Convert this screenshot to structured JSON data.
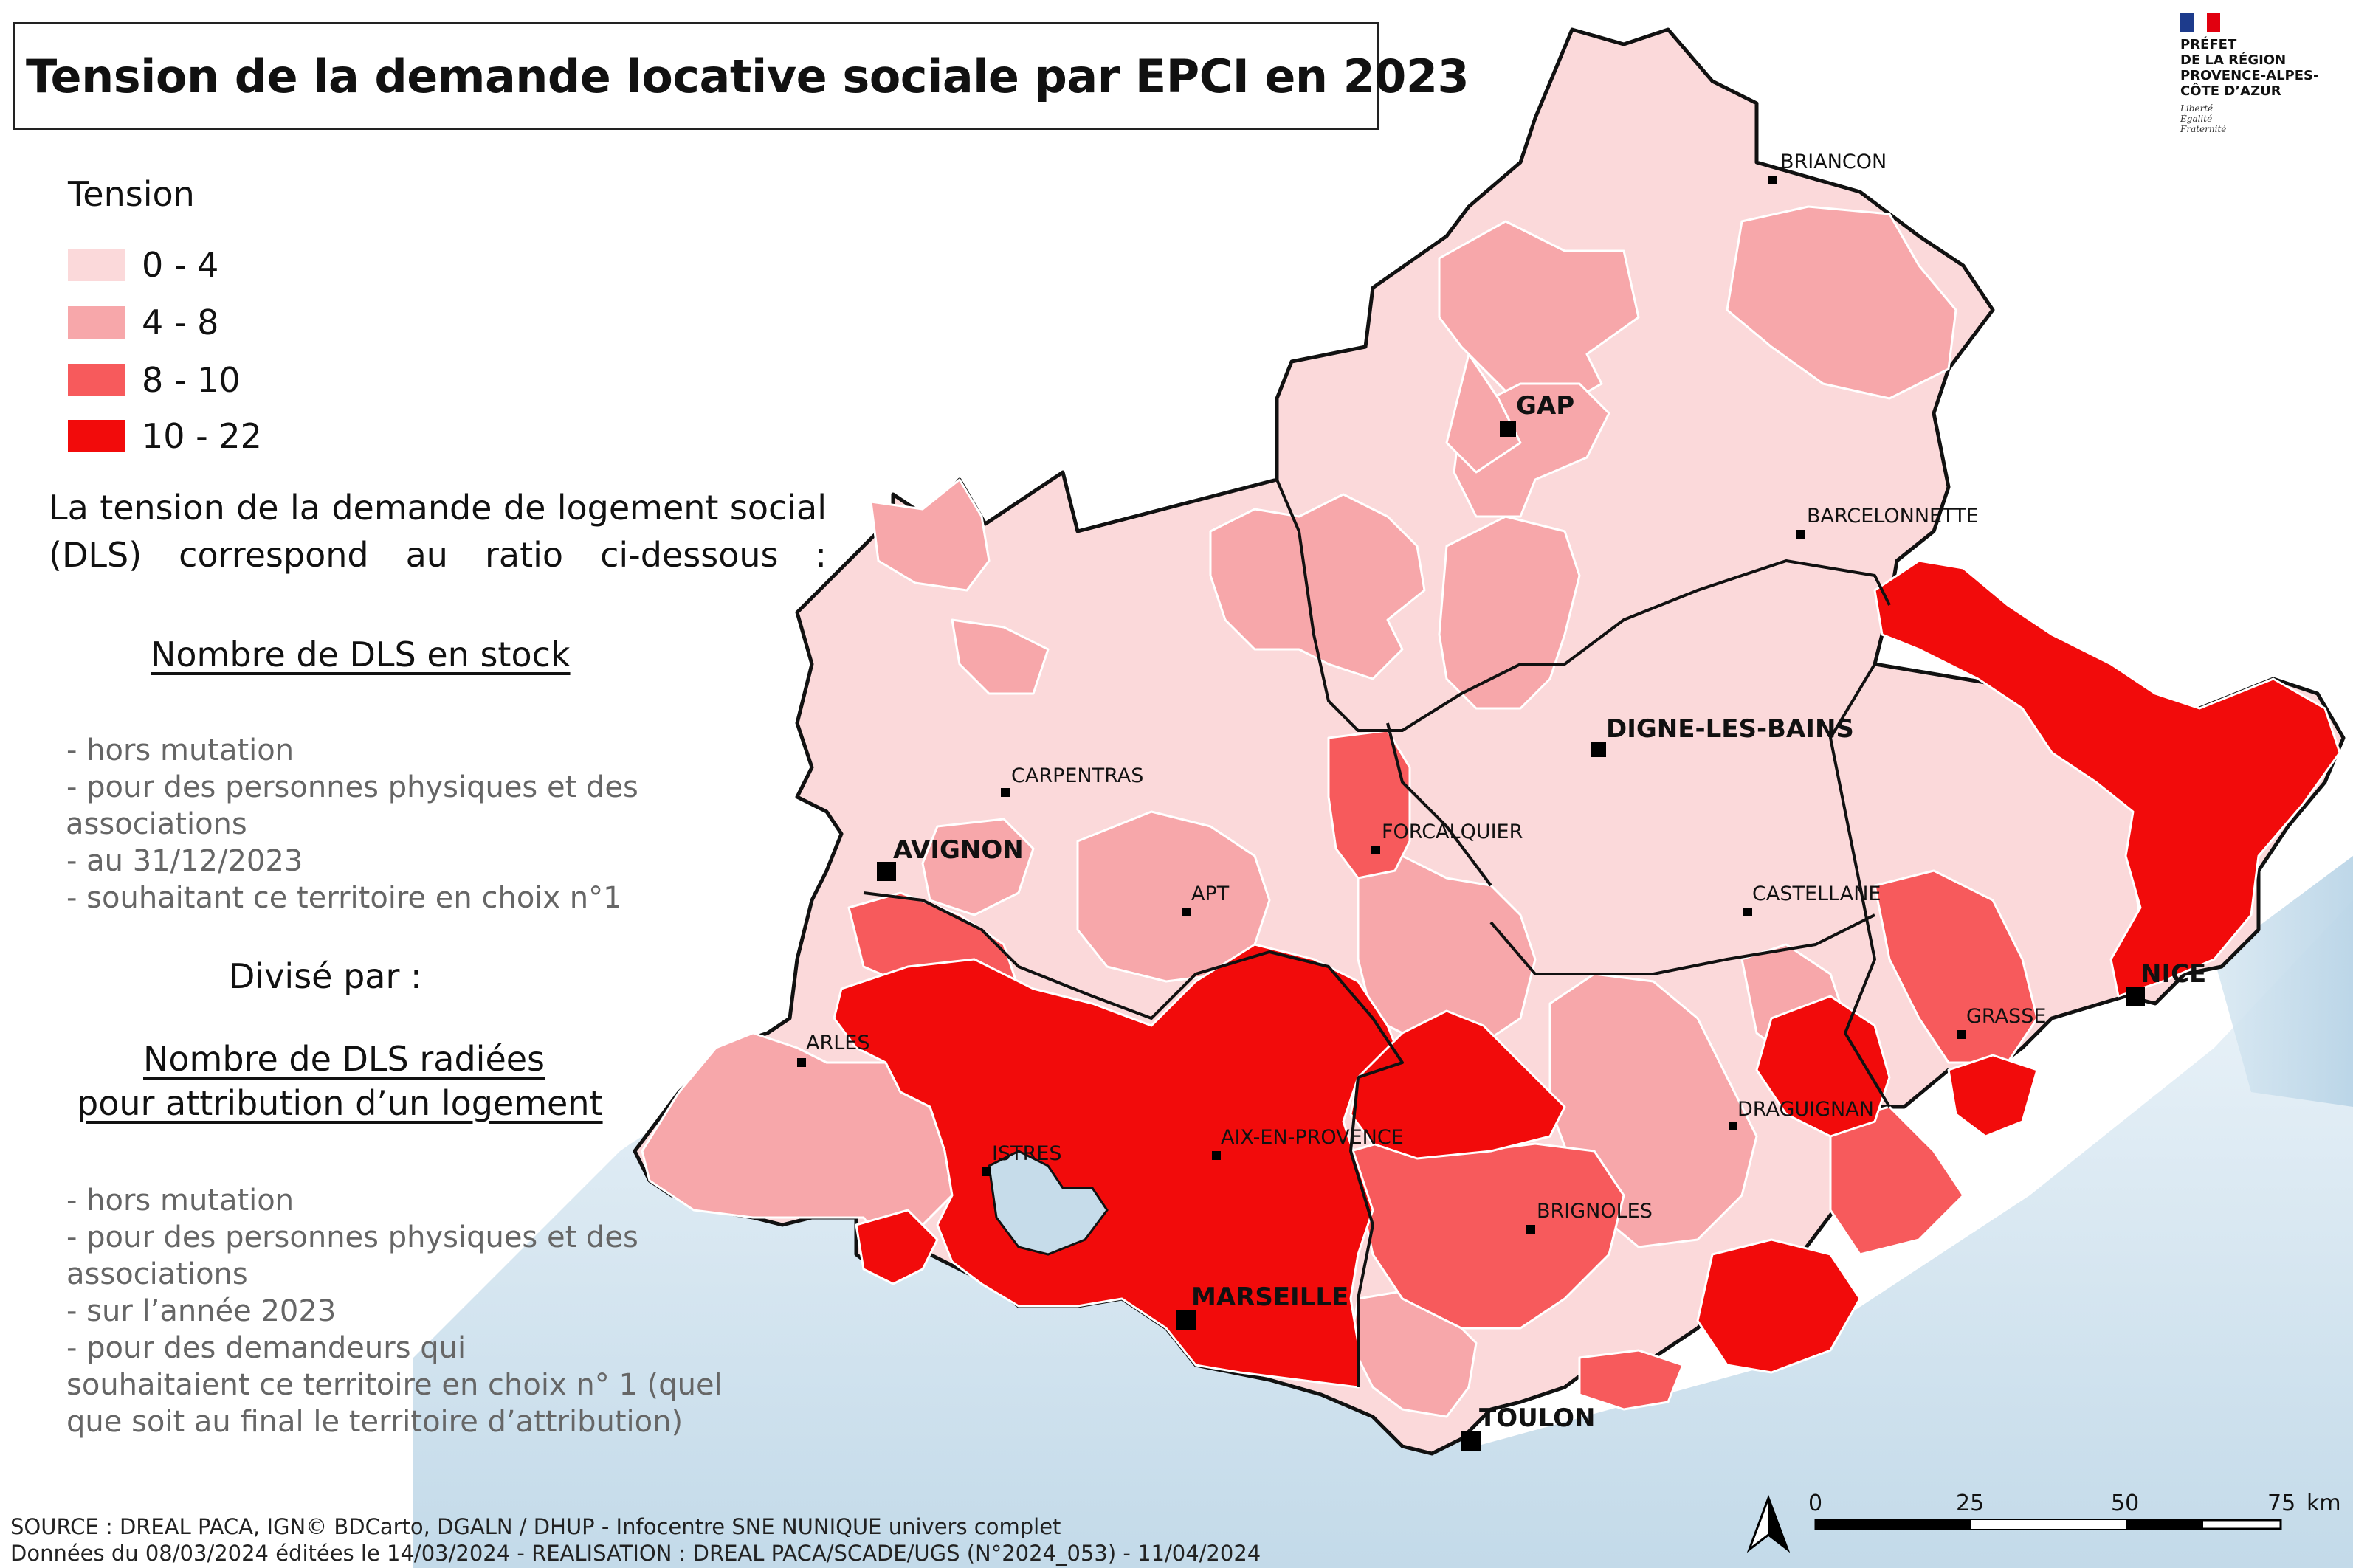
{
  "title": "Tension de la demande locative sociale  par EPCI en 2023",
  "legend": {
    "title": "Tension",
    "classes": [
      {
        "label": "0 - 4",
        "color": "#fbd9da"
      },
      {
        "label": "4 - 8",
        "color": "#f7a7aa"
      },
      {
        "label": "8 - 10",
        "color": "#f75a5c"
      },
      {
        "label": "10 - 22",
        "color": "#f20b0b"
      }
    ]
  },
  "definition": "La tension de la demande de logement social (DLS) correspond au ratio ci-dessous :",
  "numerator": {
    "heading": "Nombre de DLS en stock",
    "bullets": [
      "- hors mutation",
      "- pour des personnes physiques et des",
      "associations",
      "- au 31/12/2023",
      "- souhaitant ce territoire en choix n°1"
    ]
  },
  "divise": "Divisé par :",
  "denominator": {
    "heading_line1": "Nombre de DLS radiées",
    "heading_line2": "pour attribution d’un logement",
    "bullets": [
      "- hors mutation",
      "- pour des personnes physiques et des",
      "associations",
      "- sur l’année 2023",
      "- pour des demandeurs qui",
      "souhaitaient ce territoire en choix n° 1 (quel",
      "que soit au final le territoire d’attribution)"
    ]
  },
  "source_line1": "SOURCE : DREAL PACA, IGN© BDCarto, DGALN / DHUP - Infocentre SNE NUNIQUE univers complet",
  "source_line2": "Données du 08/03/2024 éditées le 14/03/2024 - REALISATION : DREAL PACA/SCADE/UGS (N°2024_053) - 11/04/2024",
  "cities": {
    "briancon": "BRIANCON",
    "gap": "GAP",
    "barcelonnette": "BARCELONNETTE",
    "digne": "DIGNE-LES-BAINS",
    "carpentras": "CARPENTRAS",
    "forcalquier": "FORCALQUIER",
    "avignon": "AVIGNON",
    "apt": "APT",
    "castellane": "CASTELLANE",
    "nice": "NICE",
    "grasse": "GRASSE",
    "arles": "ARLES",
    "aix": "AIX-EN-PROVENCE",
    "draguignan": "DRAGUIGNAN",
    "istres": "ISTRES",
    "brignoles": "BRIGNOLES",
    "marseille": "MARSEILLE",
    "toulon": "TOULON"
  },
  "scale": {
    "ticks": [
      "0",
      "25",
      "50",
      "75"
    ],
    "unit": "km"
  },
  "logo": {
    "lines": [
      "PRÉFET",
      "DE LA RÉGION",
      "PROVENCE-ALPES-",
      "CÔTE D’AZUR"
    ],
    "motto": [
      "Liberté",
      "Égalité",
      "Fraternité"
    ]
  },
  "colors": {
    "sea": "#c6dcea",
    "border": "#111111",
    "internal": "#ffffff"
  }
}
